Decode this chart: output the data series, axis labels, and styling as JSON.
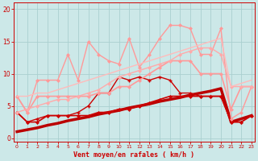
{
  "title": "",
  "xlabel": "Vent moyen/en rafales ( km/h )",
  "ylabel": "",
  "bg_color": "#cce8e8",
  "grid_color": "#aad0d0",
  "xlabel_color": "#cc0000",
  "tick_color": "#cc0000",
  "x_ticks": [
    0,
    1,
    2,
    3,
    4,
    5,
    6,
    7,
    8,
    9,
    10,
    11,
    12,
    13,
    14,
    15,
    16,
    17,
    18,
    19,
    20,
    21,
    22,
    23
  ],
  "ylim": [
    -0.5,
    21
  ],
  "xlim": [
    -0.3,
    23.3
  ],
  "lines": [
    {
      "x": [
        0,
        1,
        2,
        3,
        4,
        5,
        6,
        7,
        8,
        9,
        10,
        11,
        12,
        13,
        14,
        15,
        16,
        17,
        18,
        19,
        20,
        21,
        22,
        23
      ],
      "y": [
        1.0,
        1.3,
        1.6,
        2.0,
        2.3,
        2.7,
        3.0,
        3.3,
        3.7,
        4.0,
        4.3,
        4.7,
        5.0,
        5.3,
        5.7,
        6.0,
        6.3,
        6.7,
        7.0,
        7.3,
        7.7,
        2.5,
        3.0,
        3.5
      ],
      "color": "#bb0000",
      "lw": 2.5,
      "marker": null,
      "ms": 0
    },
    {
      "x": [
        0,
        1,
        2,
        3,
        4,
        5,
        6,
        7,
        8,
        9,
        10,
        11,
        12,
        13,
        14,
        15,
        16,
        17,
        18,
        19,
        20,
        21,
        22,
        23
      ],
      "y": [
        4.0,
        2.5,
        2.5,
        3.5,
        3.5,
        3.5,
        3.5,
        3.5,
        4.0,
        4.0,
        4.5,
        4.5,
        5.0,
        5.5,
        6.0,
        6.5,
        6.5,
        6.5,
        6.5,
        6.5,
        6.5,
        2.5,
        2.5,
        3.5
      ],
      "color": "#cc0000",
      "lw": 1.2,
      "marker": "D",
      "ms": 2.0
    },
    {
      "x": [
        0,
        1,
        2,
        3,
        4,
        5,
        6,
        7,
        8,
        9,
        10,
        11,
        12,
        13,
        14,
        15,
        16,
        17,
        18,
        19,
        20,
        21,
        22,
        23
      ],
      "y": [
        4.0,
        2.5,
        3.0,
        3.5,
        3.5,
        3.5,
        4.0,
        5.0,
        7.0,
        7.0,
        9.5,
        9.0,
        9.5,
        9.0,
        9.5,
        9.0,
        7.0,
        7.0,
        6.5,
        6.5,
        6.5,
        2.5,
        2.5,
        3.5
      ],
      "color": "#cc0000",
      "lw": 1.0,
      "marker": "+",
      "ms": 3.5,
      "mew": 1.0
    },
    {
      "x": [
        0,
        1,
        2,
        3,
        4,
        5,
        6,
        7,
        8,
        9,
        10,
        11,
        12,
        13,
        14,
        15,
        16,
        17,
        18,
        19,
        20,
        21,
        22,
        23
      ],
      "y": [
        6.5,
        4.0,
        6.5,
        6.5,
        6.5,
        6.5,
        6.5,
        6.5,
        7.0,
        7.0,
        8.0,
        8.0,
        9.0,
        10.0,
        11.0,
        12.0,
        12.0,
        12.0,
        10.0,
        10.0,
        10.0,
        4.5,
        8.0,
        8.0
      ],
      "color": "#ff9999",
      "lw": 1.2,
      "marker": "D",
      "ms": 2.0
    },
    {
      "x": [
        0,
        1,
        2,
        3,
        4,
        5,
        6,
        7,
        8,
        9,
        10,
        11,
        12,
        13,
        14,
        15,
        16,
        17,
        18,
        19,
        20,
        21,
        22,
        23
      ],
      "y": [
        6.5,
        4.0,
        9.0,
        9.0,
        9.0,
        13.0,
        9.0,
        15.0,
        13.0,
        12.0,
        11.5,
        15.5,
        11.0,
        13.0,
        15.5,
        17.5,
        17.5,
        17.0,
        13.0,
        13.0,
        17.0,
        3.0,
        4.0,
        8.0
      ],
      "color": "#ff9999",
      "lw": 1.0,
      "marker": "D",
      "ms": 2.0
    },
    {
      "x": [
        0,
        1,
        2,
        3,
        4,
        5,
        6,
        7,
        8,
        9,
        10,
        11,
        12,
        13,
        14,
        15,
        16,
        17,
        18,
        19,
        20,
        21,
        22,
        23
      ],
      "y": [
        4.0,
        4.5,
        5.0,
        5.5,
        6.0,
        6.0,
        6.5,
        7.0,
        7.5,
        8.5,
        9.5,
        10.0,
        10.5,
        11.0,
        11.5,
        12.0,
        13.0,
        13.5,
        14.0,
        14.0,
        13.0,
        8.0,
        8.0,
        8.0
      ],
      "color": "#ffaaaa",
      "lw": 1.0,
      "marker": "D",
      "ms": 2.0
    },
    {
      "x": [
        0,
        1,
        2,
        3,
        4,
        5,
        6,
        7,
        8,
        9,
        10,
        11,
        12,
        13,
        14,
        15,
        16,
        17,
        18,
        19,
        20,
        21,
        22,
        23
      ],
      "y": [
        6.5,
        6.5,
        7.0,
        7.0,
        7.5,
        8.0,
        8.5,
        9.0,
        9.5,
        10.0,
        10.5,
        11.0,
        11.5,
        12.0,
        12.5,
        13.0,
        13.5,
        14.0,
        14.5,
        15.0,
        15.5,
        8.0,
        8.5,
        9.0
      ],
      "color": "#ffbbbb",
      "lw": 1.0,
      "marker": null,
      "ms": 0
    }
  ]
}
